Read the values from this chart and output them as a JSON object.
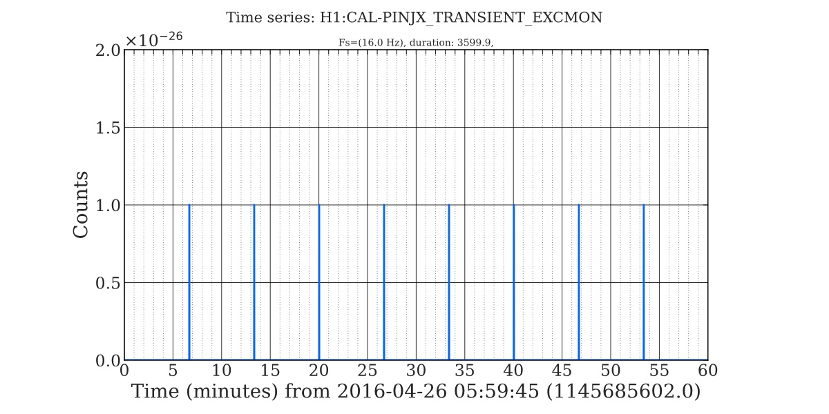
{
  "chart_data": {
    "type": "line",
    "title": "Time series: H1:CAL-PINJX_TRANSIENT_EXCMON",
    "subtitle": "Fs=(16.0 Hz), duration: 3599.9,",
    "xlabel": "Time (minutes) from 2016-04-26 05:59:45 (1145685602.0)",
    "ylabel": "Counts",
    "series": [
      {
        "color": "#0066ff",
        "x": [
          0,
          6.67,
          6.68,
          6.69,
          13.34,
          13.35,
          13.36,
          20.02,
          20.03,
          20.04,
          26.69,
          26.7,
          26.71,
          33.37,
          33.38,
          33.39,
          40.04,
          40.05,
          40.06,
          46.72,
          46.73,
          46.74,
          53.39,
          53.4,
          53.41,
          60
        ],
        "values": [
          0,
          0,
          1.0,
          0,
          0,
          1.0,
          0,
          0,
          1.0,
          0,
          0,
          1.0,
          0,
          0,
          1.0,
          0,
          0,
          1.0,
          0,
          0,
          1.0,
          0,
          0,
          1.0,
          0,
          0
        ]
      }
    ],
    "xlim": [
      0,
      60
    ],
    "ylim": [
      0,
      2.0
    ],
    "xticks": [
      0,
      {
        "value": 1,
        "label": null
      },
      {
        "value": 2,
        "label": null
      },
      {
        "value": 3,
        "label": null
      },
      {
        "value": 4,
        "label": null
      },
      5,
      {
        "value": 6,
        "label": null
      },
      {
        "value": 7,
        "label": null
      },
      {
        "value": 8,
        "label": null
      },
      {
        "value": 9,
        "label": null
      },
      10,
      {
        "value": 11,
        "label": null
      },
      {
        "value": 12,
        "label": null
      },
      {
        "value": 13,
        "label": null
      },
      {
        "value": 14,
        "label": null
      },
      15,
      {
        "value": 16,
        "label": null
      },
      {
        "value": 17,
        "label": null
      },
      {
        "value": 18,
        "label": null
      },
      {
        "value": 19,
        "label": null
      },
      20,
      {
        "value": 21,
        "label": null
      },
      {
        "value": 22,
        "label": null
      },
      {
        "value": 23,
        "label": null
      },
      {
        "value": 24,
        "label": null
      },
      25,
      {
        "value": 26,
        "label": null
      },
      {
        "value": 27,
        "label": null
      },
      {
        "value": 28,
        "label": null
      },
      {
        "value": 29,
        "label": null
      },
      30,
      {
        "value": 31,
        "label": null
      },
      {
        "value": 32,
        "label": null
      },
      {
        "value": 33,
        "label": null
      },
      {
        "value": 34,
        "label": null
      },
      35,
      {
        "value": 36,
        "label": null
      },
      {
        "value": 37,
        "label": null
      },
      {
        "value": 38,
        "label": null
      },
      {
        "value": 39,
        "label": null
      },
      40,
      {
        "value": 41,
        "label": null
      },
      {
        "value": 42,
        "label": null
      },
      {
        "value": 43,
        "label": null
      },
      {
        "value": 44,
        "label": null
      },
      45,
      {
        "value": 46,
        "label": null
      },
      {
        "value": 47,
        "label": null
      },
      {
        "value": 48,
        "label": null
      },
      {
        "value": 49,
        "label": null
      },
      50,
      {
        "value": 51,
        "label": null
      },
      {
        "value": 52,
        "label": null
      },
      {
        "value": 53,
        "label": null
      },
      {
        "value": 54,
        "label": null
      },
      55,
      {
        "value": 56,
        "label": null
      },
      {
        "value": 57,
        "label": null
      },
      {
        "value": 58,
        "label": null
      },
      {
        "value": 59,
        "label": null
      },
      60
    ],
    "yticks": [
      {
        "value": 0,
        "label": "0.0"
      },
      {
        "value": 0.5,
        "label": "0.5"
      },
      {
        "value": 1.0,
        "label": "1.0"
      },
      {
        "value": 1.5,
        "label": "1.5"
      },
      {
        "value": 2.0,
        "label": "2.0"
      }
    ],
    "annotations": [
      "×10$^{−26}$"
    ],
    "grid": true,
    "marker": "none",
    "line_style": "solid"
  }
}
